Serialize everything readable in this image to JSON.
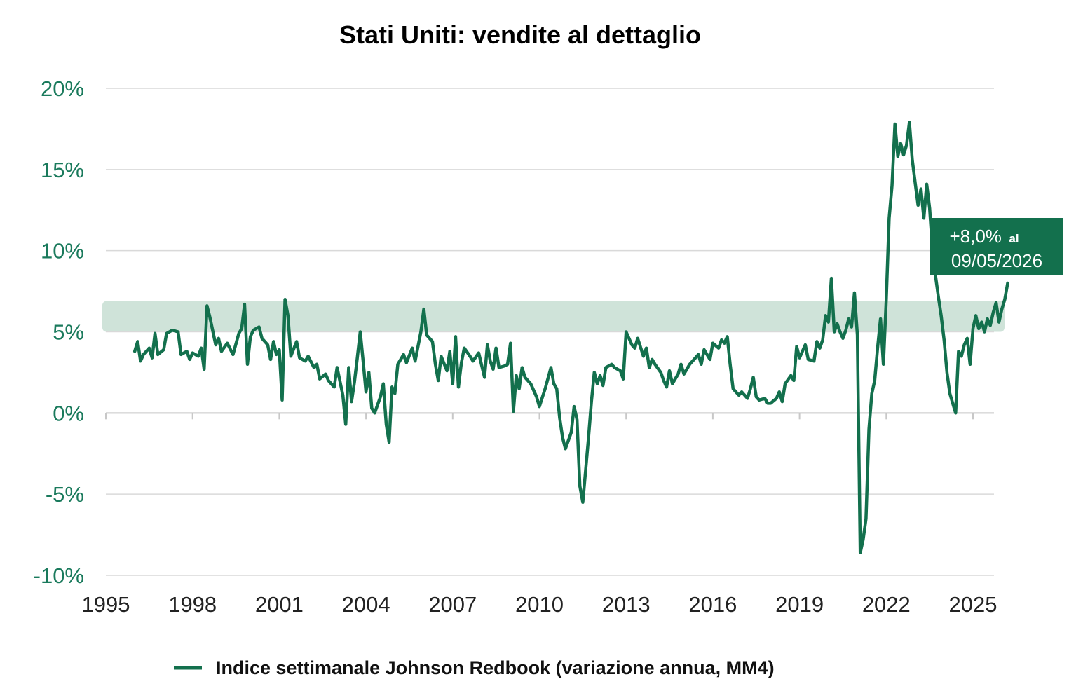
{
  "chart_data": {
    "type": "line",
    "title": "Stati Uniti: vendite al dettaglio",
    "xlabel": "",
    "ylabel": "",
    "xlim": [
      1995,
      2026.2
    ],
    "ylim": [
      -10,
      20
    ],
    "y_ticks": [
      20,
      15,
      10,
      5,
      0,
      -5,
      -10
    ],
    "y_tick_labels": [
      "20%",
      "15%",
      "10%",
      "5%",
      "0%",
      "-5%",
      "-10%"
    ],
    "x_ticks": [
      1995,
      1998,
      2001,
      2004,
      2007,
      2010,
      2013,
      2016,
      2019,
      2022,
      2025
    ],
    "x_tick_labels": [
      "1995",
      "1998",
      "2001",
      "2004",
      "2007",
      "2010",
      "2013",
      "2016",
      "2019",
      "2022",
      "2025"
    ],
    "grid": "horizontal",
    "legend_position": "bottom",
    "band": {
      "y_from": 5,
      "y_to": 6.9,
      "color": "#cfe3d9"
    },
    "annotation": {
      "value_text": "+8,0%",
      "suffix_text": "al",
      "date_text": "09/05/2026",
      "color": "#13704d"
    },
    "colors": {
      "line": "#13704d",
      "axis_text": "#1a7a5c",
      "grid": "#d9d9d9"
    },
    "series": [
      {
        "name": "Indice settimanale Johnson Redbook (variazione annua, MM4)",
        "points": [
          [
            1996.0,
            3.8
          ],
          [
            1996.1,
            4.4
          ],
          [
            1996.2,
            3.2
          ],
          [
            1996.3,
            3.6
          ],
          [
            1996.5,
            4.0
          ],
          [
            1996.6,
            3.4
          ],
          [
            1996.7,
            4.9
          ],
          [
            1996.8,
            3.6
          ],
          [
            1997.0,
            3.9
          ],
          [
            1997.1,
            4.9
          ],
          [
            1997.3,
            5.1
          ],
          [
            1997.5,
            5.0
          ],
          [
            1997.6,
            3.6
          ],
          [
            1997.8,
            3.8
          ],
          [
            1997.9,
            3.3
          ],
          [
            1998.0,
            3.7
          ],
          [
            1998.2,
            3.5
          ],
          [
            1998.3,
            4.0
          ],
          [
            1998.4,
            2.7
          ],
          [
            1998.5,
            6.6
          ],
          [
            1998.6,
            5.9
          ],
          [
            1998.8,
            4.2
          ],
          [
            1998.9,
            4.6
          ],
          [
            1999.0,
            3.8
          ],
          [
            1999.2,
            4.3
          ],
          [
            1999.4,
            3.6
          ],
          [
            1999.6,
            4.9
          ],
          [
            1999.7,
            5.2
          ],
          [
            1999.8,
            6.7
          ],
          [
            1999.9,
            3.0
          ],
          [
            2000.0,
            4.7
          ],
          [
            2000.1,
            5.1
          ],
          [
            2000.3,
            5.3
          ],
          [
            2000.4,
            4.6
          ],
          [
            2000.6,
            4.2
          ],
          [
            2000.7,
            3.3
          ],
          [
            2000.8,
            4.4
          ],
          [
            2000.9,
            3.6
          ],
          [
            2001.0,
            3.9
          ],
          [
            2001.1,
            0.8
          ],
          [
            2001.2,
            7.0
          ],
          [
            2001.3,
            6.0
          ],
          [
            2001.4,
            3.5
          ],
          [
            2001.6,
            4.4
          ],
          [
            2001.7,
            3.4
          ],
          [
            2001.9,
            3.2
          ],
          [
            2002.0,
            3.5
          ],
          [
            2002.2,
            2.8
          ],
          [
            2002.3,
            3.0
          ],
          [
            2002.4,
            2.1
          ],
          [
            2002.6,
            2.4
          ],
          [
            2002.7,
            2.0
          ],
          [
            2002.9,
            1.6
          ],
          [
            2003.0,
            2.8
          ],
          [
            2003.2,
            1.1
          ],
          [
            2003.3,
            -0.7
          ],
          [
            2003.4,
            2.8
          ],
          [
            2003.5,
            0.7
          ],
          [
            2003.6,
            1.9
          ],
          [
            2003.7,
            3.4
          ],
          [
            2003.8,
            5.0
          ],
          [
            2003.9,
            3.2
          ],
          [
            2004.0,
            1.3
          ],
          [
            2004.1,
            2.5
          ],
          [
            2004.2,
            0.3
          ],
          [
            2004.3,
            0.0
          ],
          [
            2004.5,
            1.0
          ],
          [
            2004.6,
            1.8
          ],
          [
            2004.7,
            -0.7
          ],
          [
            2004.8,
            -1.8
          ],
          [
            2004.9,
            1.6
          ],
          [
            2005.0,
            1.2
          ],
          [
            2005.1,
            3.0
          ],
          [
            2005.3,
            3.6
          ],
          [
            2005.4,
            3.1
          ],
          [
            2005.6,
            4.0
          ],
          [
            2005.7,
            3.2
          ],
          [
            2005.9,
            5.0
          ],
          [
            2006.0,
            6.4
          ],
          [
            2006.1,
            4.8
          ],
          [
            2006.3,
            4.4
          ],
          [
            2006.4,
            3.0
          ],
          [
            2006.5,
            2.0
          ],
          [
            2006.6,
            3.5
          ],
          [
            2006.8,
            2.6
          ],
          [
            2006.9,
            3.8
          ],
          [
            2007.0,
            1.8
          ],
          [
            2007.1,
            4.7
          ],
          [
            2007.2,
            1.6
          ],
          [
            2007.3,
            3.1
          ],
          [
            2007.4,
            4.0
          ],
          [
            2007.6,
            3.5
          ],
          [
            2007.7,
            3.2
          ],
          [
            2007.9,
            3.7
          ],
          [
            2008.1,
            2.2
          ],
          [
            2008.2,
            4.2
          ],
          [
            2008.3,
            3.2
          ],
          [
            2008.4,
            2.7
          ],
          [
            2008.5,
            4.0
          ],
          [
            2008.6,
            2.8
          ],
          [
            2008.8,
            2.9
          ],
          [
            2008.9,
            3.0
          ],
          [
            2009.0,
            4.3
          ],
          [
            2009.1,
            0.1
          ],
          [
            2009.2,
            2.3
          ],
          [
            2009.3,
            1.5
          ],
          [
            2009.4,
            2.8
          ],
          [
            2009.5,
            2.2
          ],
          [
            2009.7,
            1.8
          ],
          [
            2009.9,
            1.0
          ],
          [
            2010.0,
            0.4
          ],
          [
            2010.2,
            1.5
          ],
          [
            2010.4,
            2.8
          ],
          [
            2010.5,
            1.8
          ],
          [
            2010.6,
            1.5
          ],
          [
            2010.7,
            -0.3
          ],
          [
            2010.8,
            -1.5
          ],
          [
            2010.9,
            -2.2
          ],
          [
            2011.1,
            -1.2
          ],
          [
            2011.2,
            0.4
          ],
          [
            2011.3,
            -0.4
          ],
          [
            2011.4,
            -4.5
          ],
          [
            2011.5,
            -5.5
          ],
          [
            2011.6,
            -3.5
          ],
          [
            2011.7,
            -1.5
          ],
          [
            2011.8,
            0.7
          ],
          [
            2011.9,
            2.5
          ],
          [
            2012.0,
            1.8
          ],
          [
            2012.1,
            2.3
          ],
          [
            2012.2,
            1.7
          ],
          [
            2012.3,
            2.8
          ],
          [
            2012.5,
            3.0
          ],
          [
            2012.6,
            2.8
          ],
          [
            2012.8,
            2.6
          ],
          [
            2012.9,
            2.1
          ],
          [
            2013.0,
            5.0
          ],
          [
            2013.2,
            4.2
          ],
          [
            2013.3,
            4.0
          ],
          [
            2013.4,
            4.6
          ],
          [
            2013.6,
            3.5
          ],
          [
            2013.7,
            4.0
          ],
          [
            2013.8,
            2.8
          ],
          [
            2013.9,
            3.3
          ],
          [
            2014.0,
            3.0
          ],
          [
            2014.2,
            2.5
          ],
          [
            2014.3,
            2.0
          ],
          [
            2014.4,
            1.6
          ],
          [
            2014.5,
            2.6
          ],
          [
            2014.6,
            1.8
          ],
          [
            2014.8,
            2.4
          ],
          [
            2014.9,
            3.0
          ],
          [
            2015.0,
            2.4
          ],
          [
            2015.2,
            3.0
          ],
          [
            2015.3,
            3.2
          ],
          [
            2015.5,
            3.6
          ],
          [
            2015.6,
            3.0
          ],
          [
            2015.7,
            3.9
          ],
          [
            2015.9,
            3.3
          ],
          [
            2016.0,
            4.3
          ],
          [
            2016.2,
            4.0
          ],
          [
            2016.3,
            4.5
          ],
          [
            2016.4,
            4.3
          ],
          [
            2016.5,
            4.7
          ],
          [
            2016.6,
            3.0
          ],
          [
            2016.7,
            1.5
          ],
          [
            2016.9,
            1.1
          ],
          [
            2017.0,
            1.3
          ],
          [
            2017.2,
            0.9
          ],
          [
            2017.3,
            1.5
          ],
          [
            2017.4,
            2.2
          ],
          [
            2017.5,
            1.0
          ],
          [
            2017.6,
            0.8
          ],
          [
            2017.8,
            0.9
          ],
          [
            2017.9,
            0.6
          ],
          [
            2018.0,
            0.6
          ],
          [
            2018.2,
            0.9
          ],
          [
            2018.3,
            1.3
          ],
          [
            2018.4,
            0.7
          ],
          [
            2018.5,
            1.8
          ],
          [
            2018.7,
            2.3
          ],
          [
            2018.8,
            2.0
          ],
          [
            2018.9,
            4.1
          ],
          [
            2019.0,
            3.4
          ],
          [
            2019.2,
            4.2
          ],
          [
            2019.3,
            3.3
          ],
          [
            2019.5,
            3.2
          ],
          [
            2019.6,
            4.4
          ],
          [
            2019.7,
            4.0
          ],
          [
            2019.8,
            4.5
          ],
          [
            2019.9,
            6.0
          ],
          [
            2020.0,
            5.6
          ],
          [
            2020.1,
            8.3
          ],
          [
            2020.2,
            5.0
          ],
          [
            2020.3,
            5.5
          ],
          [
            2020.4,
            5.0
          ],
          [
            2020.5,
            4.6
          ],
          [
            2020.6,
            5.1
          ],
          [
            2020.7,
            5.8
          ],
          [
            2020.8,
            5.3
          ],
          [
            2020.9,
            7.4
          ],
          [
            2021.0,
            4.8
          ],
          [
            2021.1,
            -8.6
          ],
          [
            2021.2,
            -7.8
          ],
          [
            2021.3,
            -6.5
          ],
          [
            2021.4,
            -1.0
          ],
          [
            2021.5,
            1.2
          ],
          [
            2021.6,
            2.0
          ],
          [
            2021.7,
            4.0
          ],
          [
            2021.8,
            5.8
          ],
          [
            2021.9,
            3.0
          ],
          [
            2022.0,
            7.0
          ],
          [
            2022.1,
            12.0
          ],
          [
            2022.2,
            14.0
          ],
          [
            2022.3,
            17.8
          ],
          [
            2022.4,
            15.8
          ],
          [
            2022.5,
            16.6
          ],
          [
            2022.6,
            15.9
          ],
          [
            2022.7,
            16.5
          ],
          [
            2022.8,
            17.9
          ],
          [
            2022.9,
            15.6
          ],
          [
            2023.0,
            14.2
          ],
          [
            2023.1,
            12.8
          ],
          [
            2023.2,
            13.8
          ],
          [
            2023.3,
            12.0
          ],
          [
            2023.4,
            14.1
          ],
          [
            2023.5,
            12.6
          ],
          [
            2023.6,
            10.0
          ],
          [
            2023.7,
            8.5
          ],
          [
            2023.8,
            7.2
          ],
          [
            2023.9,
            6.0
          ],
          [
            2024.0,
            4.5
          ],
          [
            2024.1,
            2.5
          ],
          [
            2024.2,
            1.2
          ],
          [
            2024.3,
            0.6
          ],
          [
            2024.4,
            0.0
          ],
          [
            2024.5,
            3.8
          ],
          [
            2024.6,
            3.5
          ],
          [
            2024.7,
            4.2
          ],
          [
            2024.8,
            4.6
          ],
          [
            2024.9,
            3.0
          ],
          [
            2025.0,
            5.2
          ],
          [
            2025.1,
            6.0
          ],
          [
            2025.2,
            5.2
          ],
          [
            2025.3,
            5.6
          ],
          [
            2025.4,
            5.0
          ],
          [
            2025.5,
            5.8
          ],
          [
            2025.6,
            5.4
          ],
          [
            2025.7,
            6.2
          ],
          [
            2025.8,
            6.8
          ],
          [
            2025.9,
            5.6
          ],
          [
            2026.0,
            6.4
          ],
          [
            2026.1,
            7.0
          ],
          [
            2026.2,
            8.0
          ]
        ]
      }
    ]
  }
}
